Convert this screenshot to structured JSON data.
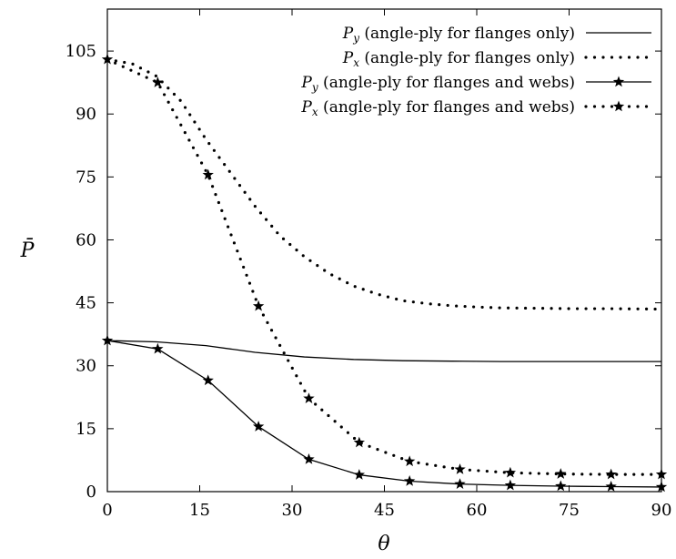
{
  "chart_data": {
    "type": "line",
    "title": "",
    "xlabel": "θ",
    "ylabel": "P̄",
    "xlim": [
      0,
      90
    ],
    "ylim": [
      0,
      115
    ],
    "xticks": [
      "0",
      "15",
      "30",
      "45",
      "60",
      "75",
      "90"
    ],
    "yticks": [
      "0",
      "15",
      "30",
      "45",
      "60",
      "75",
      "90",
      "105"
    ],
    "grid": false,
    "legend_position": "top-right",
    "series": [
      {
        "name": "P_y (angle-ply for flanges only)",
        "style": "solid",
        "marker": "none",
        "color": "#000000",
        "x": [
          0,
          8,
          16,
          24,
          32,
          40,
          48,
          56,
          64,
          72,
          80,
          90
        ],
        "y": [
          36,
          35.7,
          34.8,
          33.2,
          32.1,
          31.5,
          31.2,
          31.1,
          31.0,
          31.0,
          31.0,
          31.0
        ]
      },
      {
        "name": "P_x (angle-ply for flanges only)",
        "style": "dotted",
        "marker": "none",
        "color": "#000000",
        "x": [
          0,
          4,
          8,
          12,
          16,
          20,
          24,
          28,
          32,
          36,
          40,
          44,
          48,
          52,
          56,
          60,
          64,
          70,
          76,
          82,
          90
        ],
        "y": [
          103,
          102,
          99,
          93,
          84,
          76,
          68,
          61,
          56,
          52,
          49,
          47,
          45.5,
          44.8,
          44.3,
          44,
          43.8,
          43.7,
          43.6,
          43.6,
          43.5
        ]
      },
      {
        "name": "P_y (angle-ply for flanges and webs)",
        "style": "solid",
        "marker": "star",
        "color": "#000000",
        "x": [
          0,
          8.18,
          16.36,
          24.55,
          32.73,
          40.91,
          49.09,
          57.27,
          65.45,
          73.64,
          81.82,
          90
        ],
        "y": [
          36,
          34,
          26.5,
          15.5,
          7.7,
          4.0,
          2.5,
          1.8,
          1.5,
          1.3,
          1.2,
          1.1
        ]
      },
      {
        "name": "P_x (angle-ply for flanges and webs)",
        "style": "dotted",
        "marker": "star",
        "color": "#000000",
        "x": [
          0,
          8.18,
          16.36,
          24.55,
          32.73,
          40.91,
          49.09,
          57.27,
          65.45,
          73.64,
          81.82,
          90
        ],
        "y": [
          103,
          97.5,
          75.5,
          44.2,
          22.2,
          11.7,
          7.2,
          5.3,
          4.5,
          4.2,
          4.1,
          4.1
        ]
      }
    ]
  }
}
